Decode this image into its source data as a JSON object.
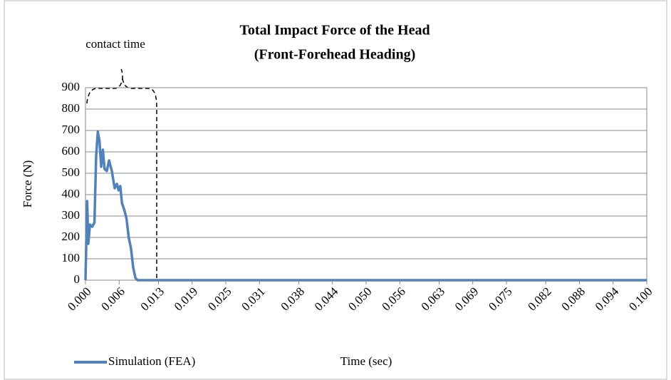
{
  "chart_data": {
    "type": "line",
    "title": "Total Impact Force of the Head",
    "subtitle": "(Front-Forehead Heading)",
    "annotation": "contact time",
    "x_label": "Time (sec)",
    "y_label": "Force (N)",
    "x": [
      0,
      0.0003,
      0.0005,
      0.0008,
      0.0012,
      0.0016,
      0.0019,
      0.0022,
      0.0025,
      0.0028,
      0.0031,
      0.0034,
      0.0038,
      0.0042,
      0.0047,
      0.0052,
      0.0056,
      0.0059,
      0.0062,
      0.0065,
      0.0069,
      0.0073,
      0.0077,
      0.0081,
      0.0085,
      0.0089,
      0.0093,
      0.1
    ],
    "series": [
      {
        "name": "Simulation (FEA)",
        "color": "#4f81bd",
        "values": [
          0,
          370,
          170,
          260,
          250,
          270,
          580,
          695,
          650,
          530,
          610,
          520,
          510,
          560,
          510,
          430,
          450,
          420,
          440,
          360,
          330,
          290,
          200,
          150,
          60,
          10,
          0,
          0
        ]
      }
    ],
    "xlim": [
      0,
      0.1
    ],
    "xticks": [
      {
        "value": 0,
        "label": "0.000"
      },
      0.006,
      0.013,
      0.019,
      0.025,
      0.031,
      0.038,
      0.044,
      {
        "value": 0.05,
        "label": "0.050"
      },
      0.056,
      0.063,
      0.069,
      0.075,
      0.082,
      0.088,
      0.094,
      {
        "value": 0.1,
        "label": "0.100"
      }
    ],
    "ylim": [
      0,
      900
    ],
    "yticks": [
      0,
      100,
      200,
      300,
      400,
      500,
      600,
      700,
      800,
      900
    ],
    "grid": true
  }
}
